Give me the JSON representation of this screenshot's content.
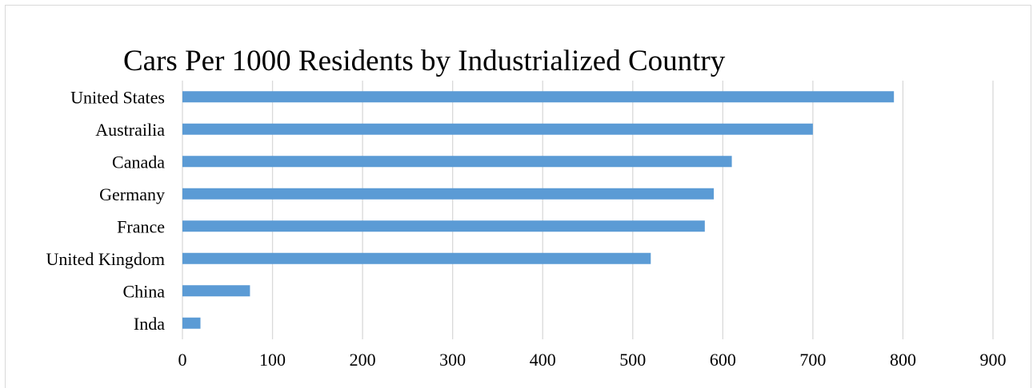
{
  "chart_data": {
    "type": "bar",
    "orientation": "horizontal",
    "title": "Cars Per 1000 Residents by Industrialized Country",
    "xlabel": "",
    "ylabel": "",
    "categories": [
      "United States",
      "Austrailia",
      "Canada",
      "Germany",
      "France",
      "United Kingdom",
      "China",
      "Inda"
    ],
    "values": [
      790,
      700,
      610,
      590,
      580,
      520,
      75,
      20
    ],
    "xlim": [
      0,
      900
    ],
    "xticks": [
      0,
      100,
      200,
      300,
      400,
      500,
      600,
      700,
      800,
      900
    ],
    "grid": "vertical",
    "legend": "none",
    "bar_color": "#5b9bd5",
    "grid_color": "#d9d9d9"
  }
}
